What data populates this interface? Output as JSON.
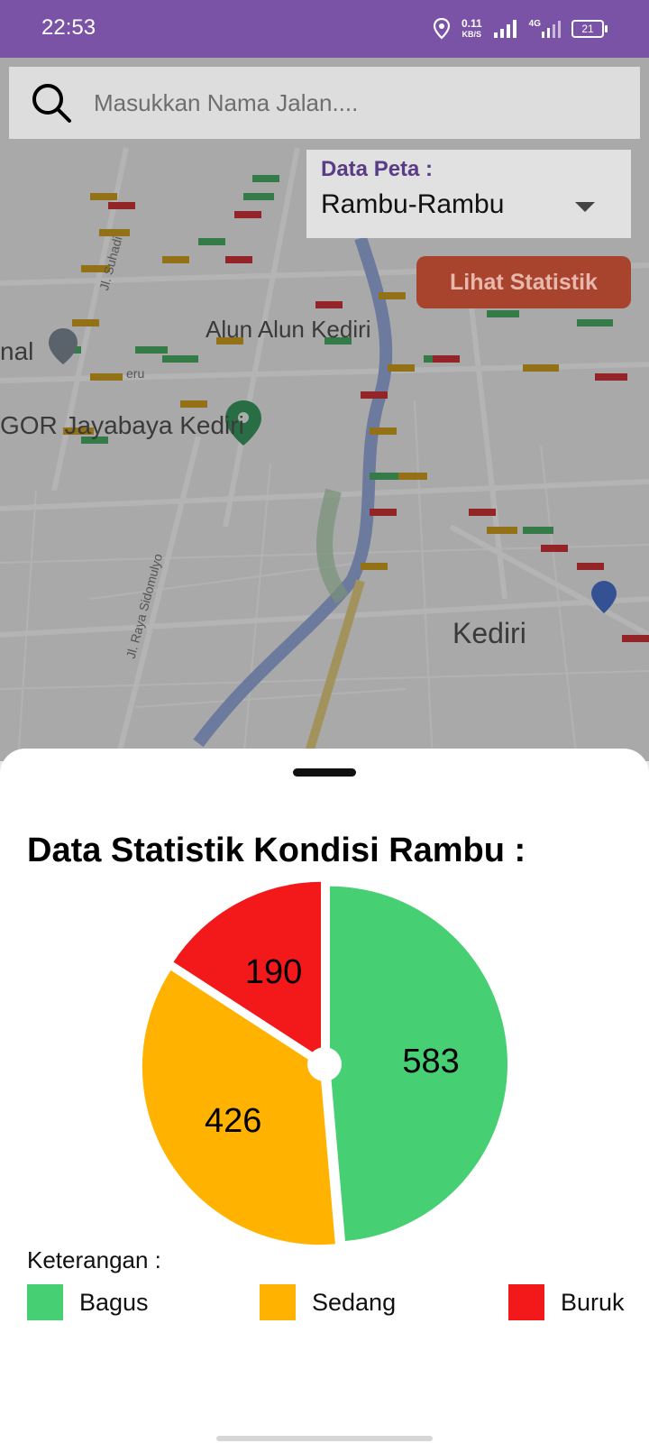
{
  "status_bar": {
    "time": "22:53",
    "speed_value": "0.11",
    "speed_unit": "KB/S",
    "network": "4G",
    "battery": "21"
  },
  "map": {
    "labels": {
      "alun": "Alun Alun Kediri",
      "gor": "GOR Jayabaya Kediri",
      "kediri": "Kediri",
      "terminal": "nal",
      "street_sidomulyo": "Jl. Raya Sidomulyo",
      "street_suhadi": "Jl. Suhadi",
      "street_peru": "eru"
    }
  },
  "search": {
    "placeholder": "Masukkan Nama Jalan...."
  },
  "data_peta": {
    "label": "Data Peta :",
    "value": "Rambu-Rambu"
  },
  "stat_button": {
    "label": "Lihat Statistik"
  },
  "sheet": {
    "title": "Data Statistik Kondisi Rambu :",
    "legend_title": "Keterangan :"
  },
  "chart_data": {
    "type": "pie",
    "title": "Data Statistik Kondisi Rambu :",
    "categories": [
      "Bagus",
      "Sedang",
      "Buruk"
    ],
    "values": [
      583,
      426,
      190
    ],
    "colors": [
      "#47cf73",
      "#ffb300",
      "#f3181a"
    ],
    "legend_title": "Keterangan :"
  },
  "colors": {
    "status_bar": "#7a52a6",
    "accent": "#5a3b86",
    "button": "#a8432e"
  }
}
